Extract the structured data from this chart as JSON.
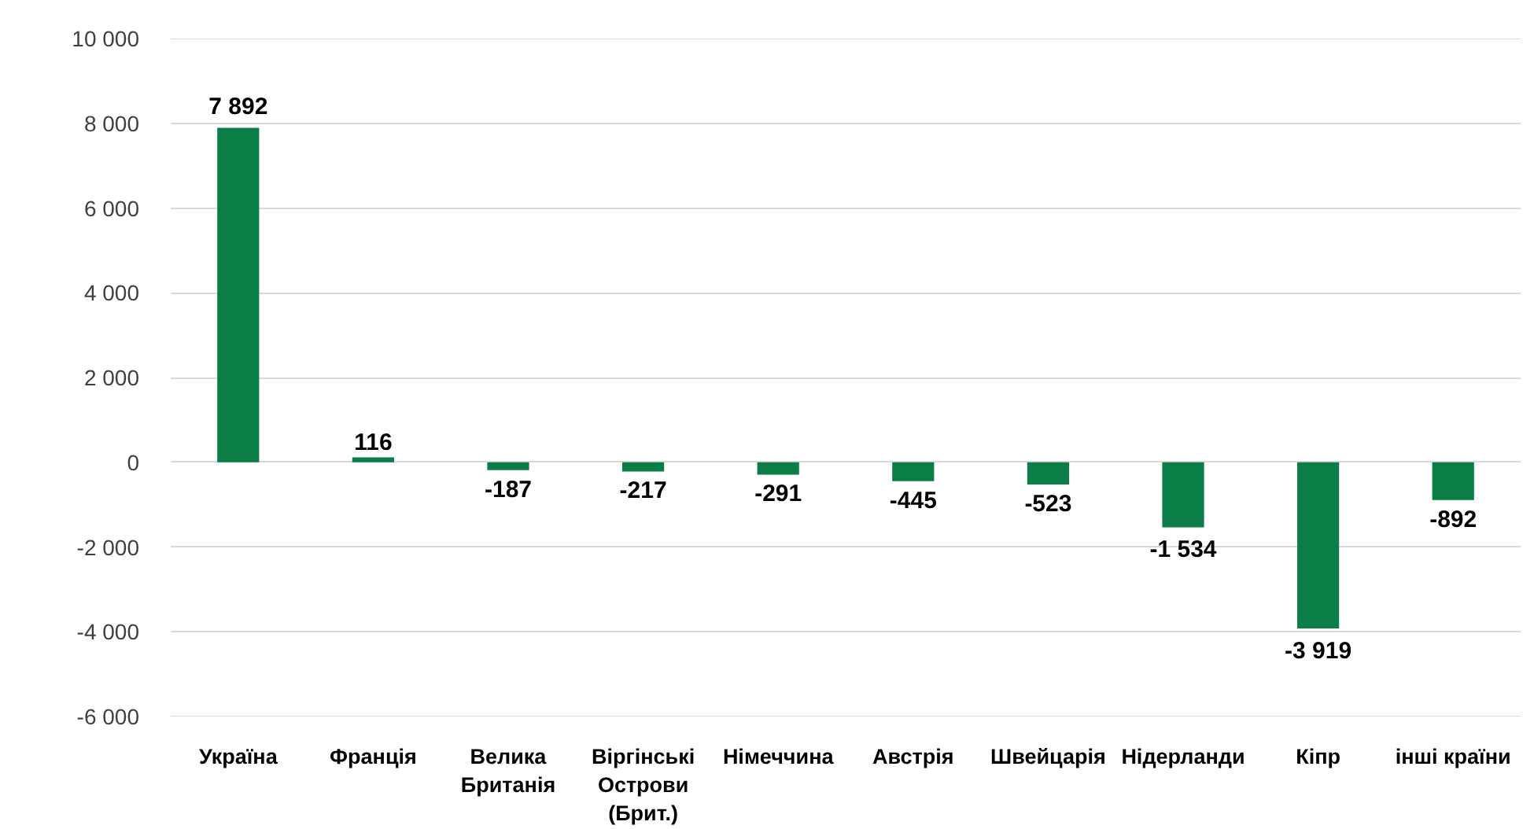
{
  "chart_data": {
    "type": "bar",
    "categories": [
      "Україна",
      "Франція",
      "Велика Британія",
      "Віргінські Острови (Брит.)",
      "Німеччина",
      "Австрія",
      "Швейцарія",
      "Нідерланди",
      "Кіпр",
      "інші країни"
    ],
    "values": [
      7892,
      116,
      -187,
      -217,
      -291,
      -445,
      -523,
      -1534,
      -3919,
      -892
    ],
    "value_labels": [
      "7 892",
      "116",
      "-187",
      "-217",
      "-291",
      "-445",
      "-523",
      "-1 534",
      "-3 919",
      "-892"
    ],
    "color": "#0b7d46",
    "ylim": [
      -6000,
      10000
    ],
    "yticks": [
      {
        "value": -6000,
        "label": "-6 000"
      },
      {
        "value": -4000,
        "label": "-4 000"
      },
      {
        "value": -2000,
        "label": "-2 000"
      },
      0,
      {
        "value": 2000,
        "label": "2 000"
      },
      {
        "value": 4000,
        "label": "4 000"
      },
      {
        "value": 6000,
        "label": "6 000"
      },
      {
        "value": 8000,
        "label": "8 000"
      },
      {
        "value": 10000,
        "label": "10 000"
      }
    ],
    "grid": "y"
  }
}
